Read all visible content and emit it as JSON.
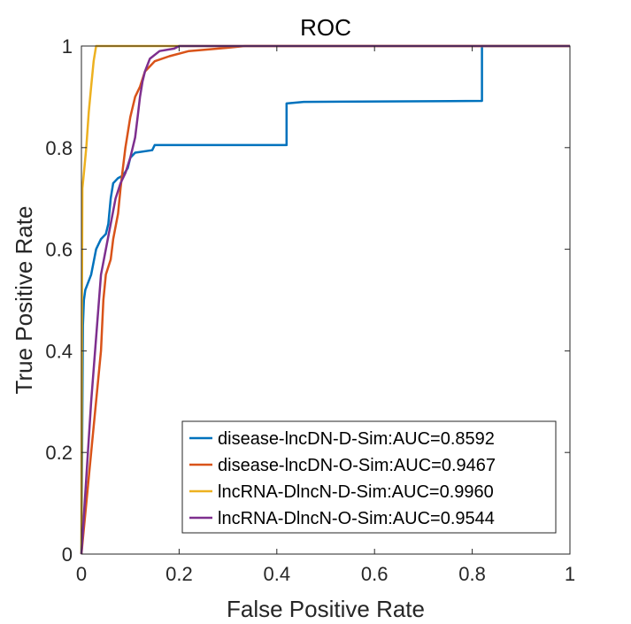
{
  "chart_data": {
    "type": "line",
    "title": "ROC",
    "xlabel": "False Positive Rate",
    "ylabel": "True Positive Rate",
    "xlim": [
      0,
      1
    ],
    "ylim": [
      0,
      1
    ],
    "xticks": [
      "0",
      "0.2",
      "0.4",
      "0.6",
      "0.8",
      "1"
    ],
    "yticks": [
      "0",
      "0.2",
      "0.4",
      "0.6",
      "0.8",
      "1"
    ],
    "grid": false,
    "legend_position": "bottom-right",
    "series": [
      {
        "name": "disease-lncDN-D-Sim:AUC=0.8592",
        "color": "#0072BD",
        "points": [
          [
            0,
            0
          ],
          [
            0.003,
            0.45
          ],
          [
            0.005,
            0.5
          ],
          [
            0.008,
            0.52
          ],
          [
            0.012,
            0.53
          ],
          [
            0.02,
            0.55
          ],
          [
            0.03,
            0.6
          ],
          [
            0.04,
            0.62
          ],
          [
            0.05,
            0.63
          ],
          [
            0.055,
            0.65
          ],
          [
            0.06,
            0.7
          ],
          [
            0.065,
            0.73
          ],
          [
            0.075,
            0.74
          ],
          [
            0.085,
            0.745
          ],
          [
            0.095,
            0.76
          ],
          [
            0.1,
            0.78
          ],
          [
            0.11,
            0.79
          ],
          [
            0.145,
            0.795
          ],
          [
            0.15,
            0.805
          ],
          [
            0.42,
            0.805
          ],
          [
            0.42,
            0.887
          ],
          [
            0.455,
            0.89
          ],
          [
            0.82,
            0.892
          ],
          [
            0.82,
            1
          ],
          [
            1,
            1
          ]
        ]
      },
      {
        "name": "disease-lncDN-O-Sim:AUC=0.9467",
        "color": "#D95319",
        "points": [
          [
            0,
            0
          ],
          [
            0.02,
            0.2
          ],
          [
            0.04,
            0.4
          ],
          [
            0.045,
            0.5
          ],
          [
            0.05,
            0.55
          ],
          [
            0.06,
            0.58
          ],
          [
            0.065,
            0.62
          ],
          [
            0.075,
            0.67
          ],
          [
            0.08,
            0.72
          ],
          [
            0.085,
            0.76
          ],
          [
            0.09,
            0.8
          ],
          [
            0.1,
            0.86
          ],
          [
            0.11,
            0.9
          ],
          [
            0.12,
            0.92
          ],
          [
            0.13,
            0.95
          ],
          [
            0.15,
            0.97
          ],
          [
            0.18,
            0.98
          ],
          [
            0.22,
            0.99
          ],
          [
            0.28,
            0.995
          ],
          [
            0.335,
            1
          ],
          [
            1,
            1
          ]
        ]
      },
      {
        "name": "lncRNA-DlncN-D-Sim:AUC=0.9960",
        "color": "#EDB120",
        "points": [
          [
            0,
            0
          ],
          [
            0.001,
            0.5
          ],
          [
            0.002,
            0.72
          ],
          [
            0.005,
            0.75
          ],
          [
            0.01,
            0.8
          ],
          [
            0.015,
            0.87
          ],
          [
            0.02,
            0.92
          ],
          [
            0.025,
            0.97
          ],
          [
            0.03,
            1
          ],
          [
            1,
            1
          ]
        ]
      },
      {
        "name": "lncRNA-DlncN-O-Sim:AUC=0.9544",
        "color": "#7E2F8E",
        "points": [
          [
            0,
            0
          ],
          [
            0.02,
            0.3
          ],
          [
            0.04,
            0.55
          ],
          [
            0.05,
            0.6
          ],
          [
            0.06,
            0.65
          ],
          [
            0.07,
            0.7
          ],
          [
            0.08,
            0.73
          ],
          [
            0.09,
            0.75
          ],
          [
            0.1,
            0.78
          ],
          [
            0.11,
            0.82
          ],
          [
            0.115,
            0.86
          ],
          [
            0.12,
            0.9
          ],
          [
            0.125,
            0.93
          ],
          [
            0.13,
            0.95
          ],
          [
            0.14,
            0.975
          ],
          [
            0.16,
            0.99
          ],
          [
            0.19,
            0.995
          ],
          [
            0.2,
            1
          ],
          [
            1,
            1
          ]
        ]
      }
    ]
  }
}
